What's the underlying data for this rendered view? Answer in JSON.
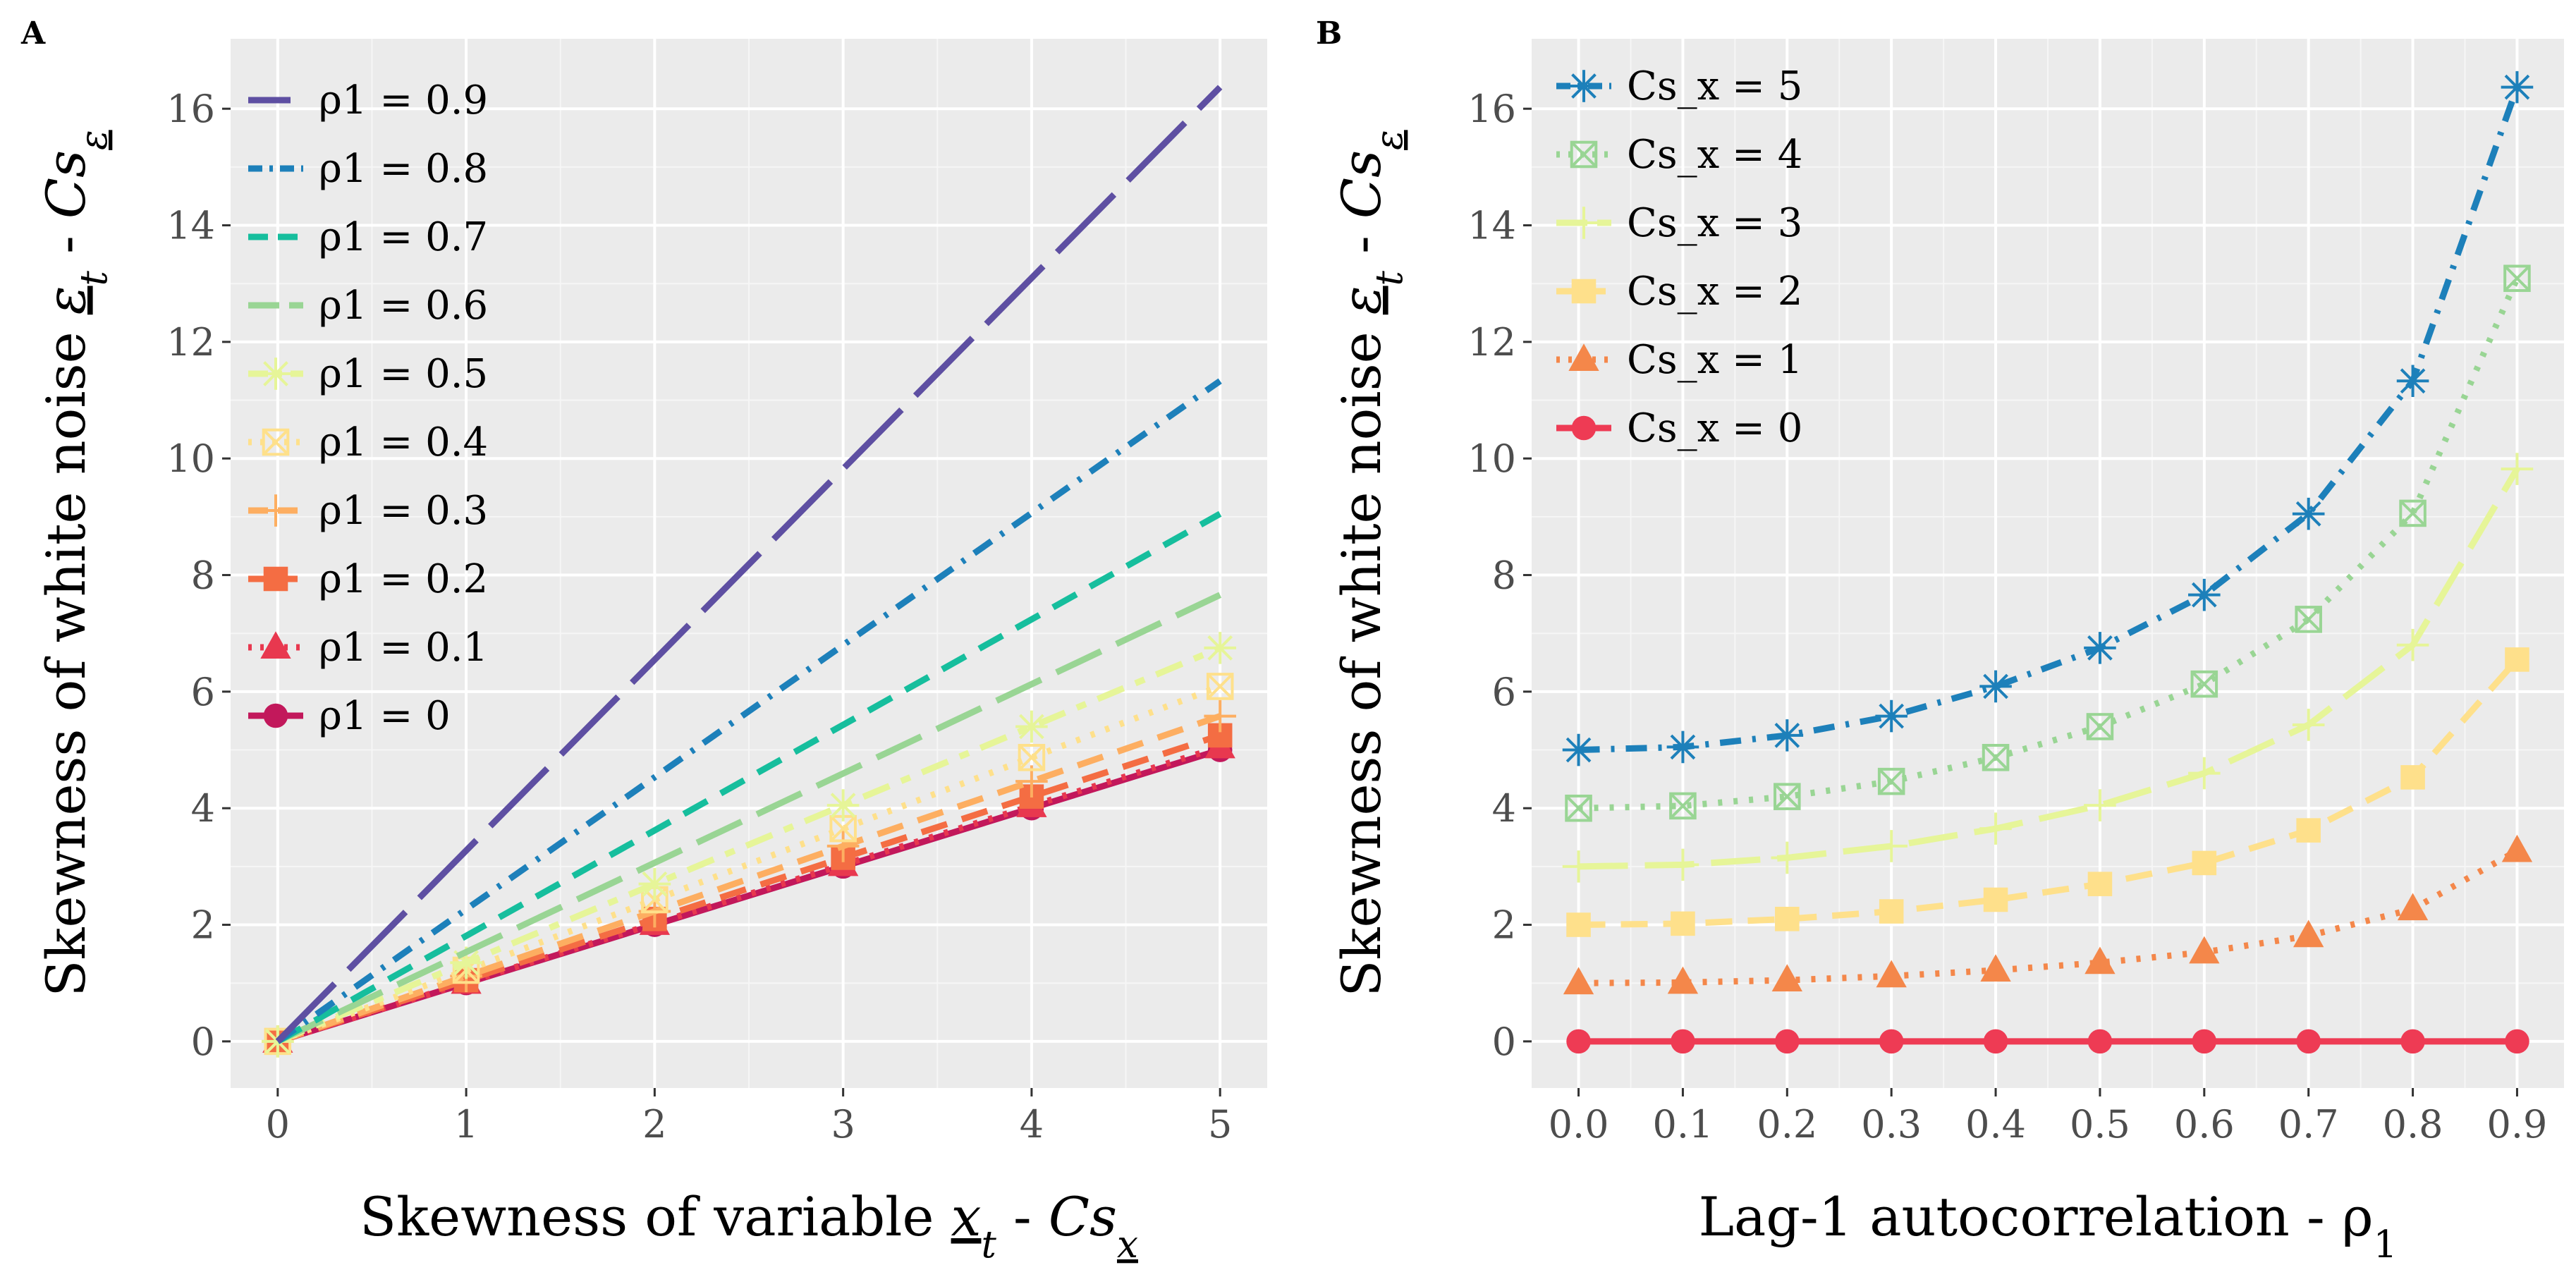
{
  "chart_data": [
    {
      "panel": "A",
      "type": "line",
      "xlabel": "Skewness of variable x_t - Cs_x",
      "ylabel": "Skewness of white noise ε_t - Cs_ε",
      "xlim": [
        -0.25,
        5.25
      ],
      "ylim": [
        -0.8,
        17.2
      ],
      "x_ticks": [
        0,
        1,
        2,
        3,
        4,
        5
      ],
      "y_ticks": [
        0,
        2,
        4,
        6,
        8,
        10,
        12,
        14,
        16
      ],
      "legend_position": "top-left",
      "series": [
        {
          "name": "ρ1 = 0.9",
          "color": "#5E4FA2",
          "dash": "long",
          "marker": "none",
          "x": [
            0,
            5
          ],
          "values": [
            0,
            16.37
          ]
        },
        {
          "name": "ρ1 = 0.8",
          "color": "#1D80BA",
          "dash": "dotdash",
          "marker": "none",
          "x": [
            0,
            5
          ],
          "values": [
            0,
            11.33
          ]
        },
        {
          "name": "ρ1 = 0.7",
          "color": "#16BE9D",
          "dash": "dash",
          "marker": "none",
          "x": [
            0,
            5
          ],
          "values": [
            0,
            9.05
          ]
        },
        {
          "name": "ρ1 = 0.6",
          "color": "#99D594",
          "dash": "longdash",
          "marker": "none",
          "x": [
            0,
            5
          ],
          "values": [
            0,
            7.66
          ]
        },
        {
          "name": "ρ1 = 0.5",
          "color": "#E6F598",
          "dash": "twodash",
          "marker": "asterisk",
          "x": [
            0,
            1,
            2,
            3,
            4,
            5
          ],
          "values": [
            0,
            1.35,
            2.7,
            4.05,
            5.4,
            6.75
          ]
        },
        {
          "name": "ρ1 = 0.4",
          "color": "#FEE08B",
          "dash": "dotted",
          "marker": "boxx",
          "x": [
            0,
            1,
            2,
            3,
            4,
            5
          ],
          "values": [
            0,
            1.22,
            2.43,
            3.65,
            4.87,
            6.09
          ]
        },
        {
          "name": "ρ1 = 0.3",
          "color": "#FDAE61",
          "dash": "dash",
          "marker": "plus",
          "x": [
            0,
            1,
            2,
            3,
            4,
            5
          ],
          "values": [
            0,
            1.12,
            2.23,
            3.35,
            4.46,
            5.58
          ]
        },
        {
          "name": "ρ1 = 0.2",
          "color": "#F46D43",
          "dash": "dash",
          "marker": "square",
          "x": [
            0,
            1,
            2,
            3,
            4,
            5
          ],
          "values": [
            0,
            1.05,
            2.1,
            3.15,
            4.2,
            5.25
          ]
        },
        {
          "name": "ρ1 = 0.1",
          "color": "#E8384F",
          "dash": "dotted",
          "marker": "triangle",
          "x": [
            0,
            1,
            2,
            3,
            4,
            5
          ],
          "values": [
            0,
            1.01,
            2.02,
            3.03,
            4.04,
            5.05
          ]
        },
        {
          "name": "ρ1 = 0",
          "color": "#C2185B",
          "dash": "solid",
          "marker": "circle",
          "x": [
            0,
            1,
            2,
            3,
            4,
            5
          ],
          "values": [
            0,
            1,
            2,
            3,
            4,
            5
          ]
        }
      ]
    },
    {
      "panel": "B",
      "type": "line",
      "xlabel": "Lag-1 autocorrelation - ρ1",
      "ylabel": "Skewness of white noise ε_t - Cs_ε",
      "xlim": [
        -0.045,
        0.945
      ],
      "ylim": [
        -0.8,
        17.2
      ],
      "x_ticks": [
        0.0,
        0.1,
        0.2,
        0.3,
        0.4,
        0.5,
        0.6,
        0.7,
        0.8,
        0.9
      ],
      "y_ticks": [
        0,
        2,
        4,
        6,
        8,
        10,
        12,
        14,
        16
      ],
      "legend_position": "top-left",
      "series": [
        {
          "name": "Cs_x = 5",
          "color": "#1D80BA",
          "dash": "dotdash",
          "marker": "asterisk",
          "x": [
            0,
            0.1,
            0.2,
            0.3,
            0.4,
            0.5,
            0.6,
            0.7,
            0.8,
            0.9
          ],
          "values": [
            5.0,
            5.05,
            5.25,
            5.58,
            6.09,
            6.75,
            7.66,
            9.05,
            11.33,
            16.37
          ]
        },
        {
          "name": "Cs_x = 4",
          "color": "#99D594",
          "dash": "dotted",
          "marker": "boxx",
          "x": [
            0,
            0.1,
            0.2,
            0.3,
            0.4,
            0.5,
            0.6,
            0.7,
            0.8,
            0.9
          ],
          "values": [
            4.0,
            4.04,
            4.2,
            4.46,
            4.87,
            5.4,
            6.13,
            7.24,
            9.06,
            13.09
          ]
        },
        {
          "name": "Cs_x = 3",
          "color": "#E6F598",
          "dash": "longdash",
          "marker": "plus",
          "x": [
            0,
            0.1,
            0.2,
            0.3,
            0.4,
            0.5,
            0.6,
            0.7,
            0.8,
            0.9
          ],
          "values": [
            3.0,
            3.03,
            3.15,
            3.35,
            3.65,
            4.05,
            4.6,
            5.43,
            6.8,
            9.82
          ]
        },
        {
          "name": "Cs_x = 2",
          "color": "#FEE08B",
          "dash": "dash",
          "marker": "square",
          "x": [
            0,
            0.1,
            0.2,
            0.3,
            0.4,
            0.5,
            0.6,
            0.7,
            0.8,
            0.9
          ],
          "values": [
            2.0,
            2.02,
            2.1,
            2.23,
            2.43,
            2.7,
            3.06,
            3.62,
            4.53,
            6.55
          ]
        },
        {
          "name": "Cs_x = 1",
          "color": "#F4874A",
          "dash": "dotted",
          "marker": "triangle",
          "x": [
            0,
            0.1,
            0.2,
            0.3,
            0.4,
            0.5,
            0.6,
            0.7,
            0.8,
            0.9
          ],
          "values": [
            1.0,
            1.01,
            1.05,
            1.12,
            1.22,
            1.35,
            1.53,
            1.81,
            2.27,
            3.27
          ]
        },
        {
          "name": "Cs_x = 0",
          "color": "#EE3B54",
          "dash": "solid",
          "marker": "circle",
          "x": [
            0,
            0.1,
            0.2,
            0.3,
            0.4,
            0.5,
            0.6,
            0.7,
            0.8,
            0.9
          ],
          "values": [
            0,
            0,
            0,
            0,
            0,
            0,
            0,
            0,
            0,
            0
          ]
        }
      ]
    }
  ]
}
